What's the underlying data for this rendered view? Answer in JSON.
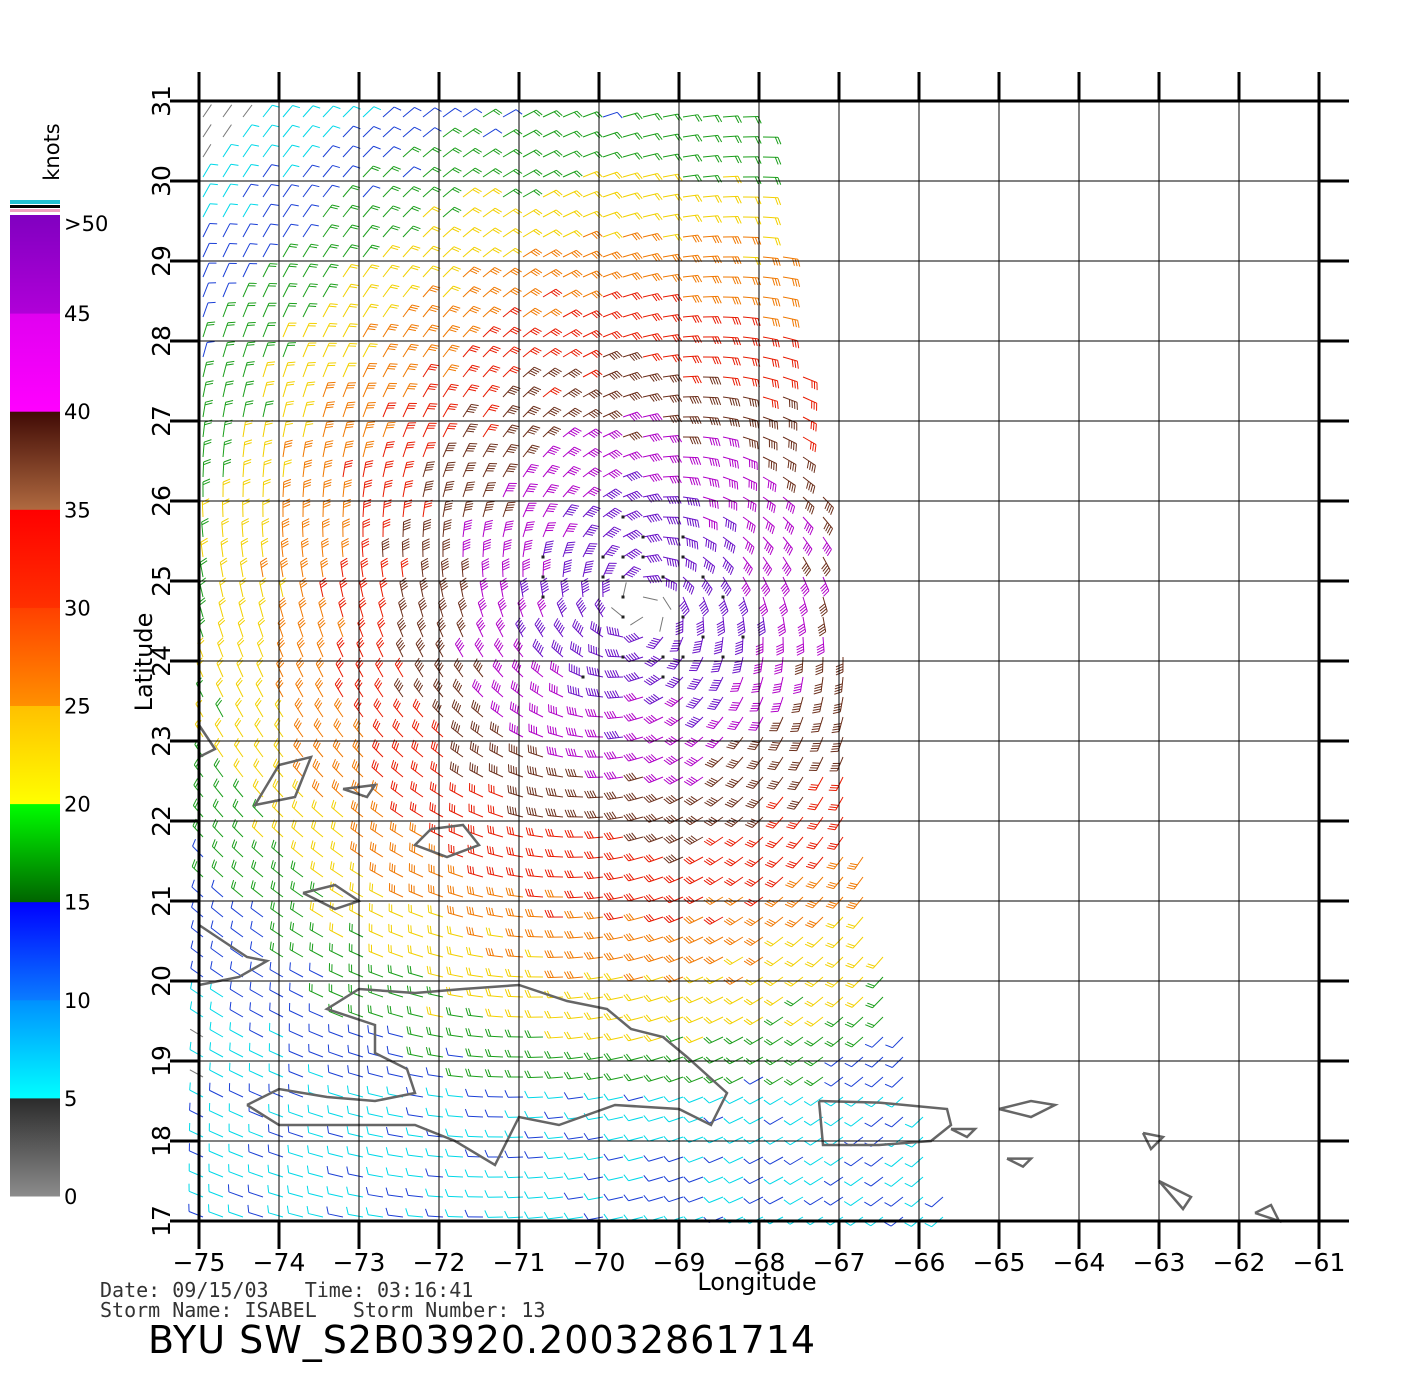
{
  "map": {
    "lon_ticks": [
      "−75",
      "−74",
      "−73",
      "−72",
      "−71",
      "−70",
      "−69",
      "−68",
      "−67",
      "−66",
      "−65",
      "−64",
      "−63",
      "−62",
      "−61"
    ],
    "lat_ticks": [
      "17",
      "18",
      "19",
      "20",
      "21",
      "22",
      "23",
      "24",
      "25",
      "26",
      "27",
      "28",
      "29",
      "30",
      "31"
    ],
    "lon_range": [
      -75,
      -61
    ],
    "lat_range": [
      17,
      31
    ],
    "xlabel": "Longitude",
    "ylabel": "Latitude",
    "storm_center": {
      "lon": -69.5,
      "lat": 24.7
    },
    "swath_east_edge": [
      {
        "lat": 31,
        "lon": -68
      },
      {
        "lat": 25,
        "lon": -67
      },
      {
        "lat": 22,
        "lon": -66.8
      },
      {
        "lat": 19,
        "lon": -66.1
      },
      {
        "lat": 17,
        "lon": -65.6
      }
    ],
    "colors": {
      "calm": "#777777",
      "light": "#00d8e8",
      "blue": "#1a3fd6",
      "green": "#1a9e1a",
      "yellow": "#f2d000",
      "orange": "#f07800",
      "red": "#e81a00",
      "brown": "#6b2e1a",
      "magenta": "#b000c8",
      "purple": "#6a10c8",
      "land": "#666666"
    }
  },
  "colorbar": {
    "unit": "knots",
    "labels": [
      "0",
      "5",
      "10",
      "15",
      "20",
      "25",
      "30",
      "35",
      "40",
      "45",
      ">50"
    ]
  },
  "info": {
    "line1": "Date: 09/15/03   Time: 03:16:41",
    "line2": "Storm Name: ISABEL   Storm Number: 13",
    "title": "BYU SW_S2B03920.20032861714"
  }
}
